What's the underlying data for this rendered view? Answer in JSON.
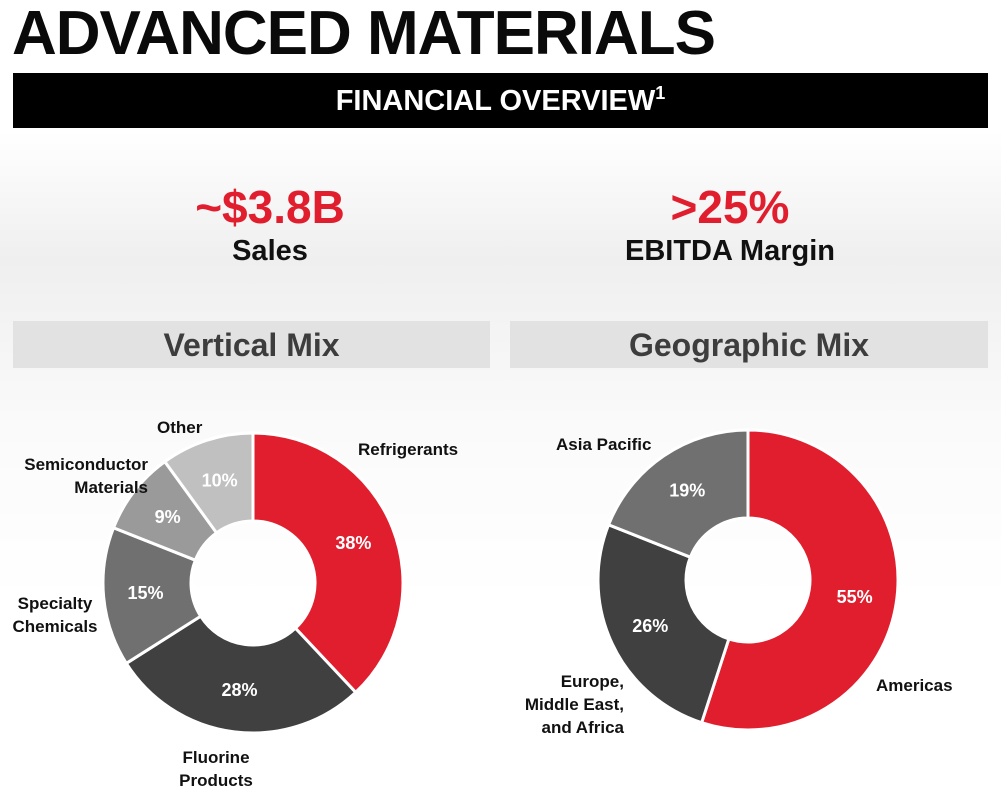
{
  "header": {
    "title": "ADVANCED MATERIALS",
    "banner": "FINANCIAL OVERVIEW",
    "banner_footnote": "1"
  },
  "kpis": {
    "sales": {
      "value": "~$3.8B",
      "label": "Sales"
    },
    "ebitda": {
      "value": ">25%",
      "label": "EBITDA Margin"
    }
  },
  "colors": {
    "accent_red": "#e01e2e",
    "dark_gray": "#404040",
    "mid_gray": "#707070",
    "light_gray": "#9a9a9a",
    "pale_gray": "#c0c0c0"
  },
  "chart_data": [
    {
      "type": "pie",
      "subtype": "donut",
      "title": "Vertical Mix",
      "categories": [
        "Refrigerants",
        "Fluorine Products",
        "Specialty Chemicals",
        "Semiconductor Materials",
        "Other"
      ],
      "values": [
        38,
        28,
        15,
        9,
        10
      ],
      "value_labels": [
        "38%",
        "28%",
        "15%",
        "9%",
        "10%"
      ],
      "colors": [
        "#e01e2e",
        "#404040",
        "#707070",
        "#9a9a9a",
        "#c0c0c0"
      ],
      "outer_labels": {
        "refrigerants": "Refrigerants",
        "fluorine_1": "Fluorine",
        "fluorine_2": "Products",
        "specialty_1": "Specialty",
        "specialty_2": "Chemicals",
        "semi_1": "Semiconductor",
        "semi_2": "Materials",
        "other": "Other"
      }
    },
    {
      "type": "pie",
      "subtype": "donut",
      "title": "Geographic Mix",
      "categories": [
        "Americas",
        "Europe, Middle East, and Africa",
        "Asia Pacific"
      ],
      "values": [
        55,
        26,
        19
      ],
      "value_labels": [
        "55%",
        "26%",
        "19%"
      ],
      "colors": [
        "#e01e2e",
        "#404040",
        "#707070"
      ],
      "outer_labels": {
        "americas": "Americas",
        "emea_1": "Europe,",
        "emea_2": "Middle East,",
        "emea_3": "and Africa",
        "apac": "Asia Pacific"
      }
    }
  ]
}
